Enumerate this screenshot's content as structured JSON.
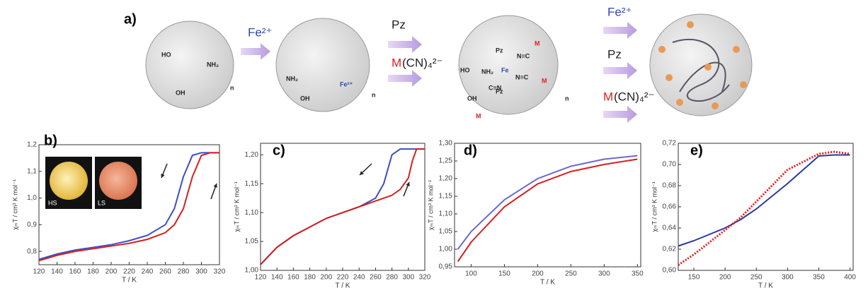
{
  "scheme": {
    "label": "a)",
    "step1": [
      "Fe²⁺"
    ],
    "step2": [
      "Pz",
      "M",
      "(CN)₄²⁻"
    ],
    "step3": [
      "Fe²⁺",
      "Pz",
      "M",
      "(CN)₄²⁻"
    ],
    "molecule1": [
      "HO",
      "NH₂",
      "OH",
      "n"
    ],
    "molecule2": [
      "NH₂",
      "OH",
      "Fe²⁺",
      "n"
    ],
    "molecule3": [
      "HO",
      "NH₂",
      "OH",
      "Fe",
      "Pz",
      "Pz",
      "N≡C",
      "N≡C",
      "C≡N",
      "M",
      "M",
      "M",
      "n"
    ]
  },
  "chart_data": [
    {
      "type": "line",
      "panel": "b)",
      "xlabel": "T / K",
      "ylabel": "χₘT / cm³ K mol⁻¹",
      "annotations": [
        "HS",
        "LS"
      ],
      "x": [
        120,
        140,
        160,
        180,
        200,
        220,
        240,
        260,
        270,
        280,
        290,
        300,
        310,
        320
      ],
      "xlim": [
        120,
        320
      ],
      "xticks": [
        120,
        140,
        160,
        180,
        200,
        220,
        240,
        260,
        280,
        300,
        320
      ],
      "ylim": [
        0.75,
        1.2
      ],
      "yticks": [
        {
          "value": 0.8,
          "label": "0,8"
        },
        {
          "value": 0.9,
          "label": "0,9"
        },
        {
          "value": 1.0,
          "label": "1,0"
        },
        {
          "value": 1.1,
          "label": "1,1"
        },
        {
          "value": 1.2,
          "label": "1,2"
        }
      ],
      "series": [
        {
          "color": "#3b4fc4",
          "style": "solid",
          "values": [
            0.77,
            0.79,
            0.805,
            0.815,
            0.825,
            0.84,
            0.86,
            0.9,
            0.96,
            1.08,
            1.16,
            1.17,
            1.17,
            1.17
          ]
        },
        {
          "color": "#d42020",
          "style": "solid",
          "values": [
            0.765,
            0.785,
            0.8,
            0.81,
            0.82,
            0.83,
            0.845,
            0.87,
            0.9,
            0.96,
            1.08,
            1.16,
            1.17,
            1.17
          ]
        }
      ]
    },
    {
      "type": "line",
      "panel": "c)",
      "xlabel": "T / K",
      "ylabel": "χₘT / cm³ K mol⁻¹",
      "x": [
        120,
        140,
        160,
        180,
        200,
        220,
        240,
        260,
        270,
        280,
        290,
        300,
        305,
        310,
        320
      ],
      "xlim": [
        120,
        320
      ],
      "xticks": [
        120,
        140,
        160,
        180,
        200,
        220,
        240,
        260,
        280,
        300,
        320
      ],
      "ylim": [
        1.0,
        1.22
      ],
      "yticks": [
        {
          "value": 1.0,
          "label": "1,00"
        },
        {
          "value": 1.05,
          "label": "1,05"
        },
        {
          "value": 1.1,
          "label": "1,10"
        },
        {
          "value": 1.15,
          "label": "1,15"
        },
        {
          "value": 1.2,
          "label": "1,20"
        }
      ],
      "series": [
        {
          "color": "#3b4fc4",
          "style": "solid",
          "values": [
            1.01,
            1.04,
            1.06,
            1.075,
            1.09,
            1.1,
            1.11,
            1.125,
            1.15,
            1.2,
            1.21,
            1.21,
            1.21,
            1.21,
            1.21
          ]
        },
        {
          "color": "#d42020",
          "style": "solid",
          "values": [
            1.01,
            1.04,
            1.06,
            1.075,
            1.09,
            1.1,
            1.11,
            1.12,
            1.125,
            1.13,
            1.14,
            1.16,
            1.19,
            1.21,
            1.21
          ]
        }
      ]
    },
    {
      "type": "line",
      "panel": "d)",
      "xlabel": "T / K",
      "ylabel": "χₘT / cm³ K mol⁻¹",
      "x": [
        80,
        100,
        150,
        200,
        250,
        300,
        350
      ],
      "xlim": [
        75,
        355
      ],
      "xticks": [
        100,
        150,
        200,
        250,
        300,
        350
      ],
      "ylim": [
        0.95,
        1.3
      ],
      "yticks": [
        {
          "value": 0.95,
          "label": "0,95"
        },
        {
          "value": 1.0,
          "label": "1,00"
        },
        {
          "value": 1.05,
          "label": "1,05"
        },
        {
          "value": 1.1,
          "label": "1,10"
        },
        {
          "value": 1.15,
          "label": "1,15"
        },
        {
          "value": 1.2,
          "label": "1,20"
        },
        {
          "value": 1.25,
          "label": "1,25"
        },
        {
          "value": 1.3,
          "label": "1,30"
        }
      ],
      "series": [
        {
          "color": "#6a6ac8",
          "style": "solid",
          "values": [
            1.0,
            1.05,
            1.14,
            1.2,
            1.235,
            1.255,
            1.265
          ]
        },
        {
          "color": "#d42020",
          "style": "solid",
          "values": [
            0.965,
            1.02,
            1.12,
            1.185,
            1.22,
            1.24,
            1.255
          ]
        }
      ]
    },
    {
      "type": "line",
      "panel": "e)",
      "xlabel": "T / K",
      "ylabel": "χₘT / cm³ K mol⁻¹",
      "x": [
        125,
        150,
        200,
        225,
        250,
        300,
        350,
        375,
        400
      ],
      "xlim": [
        125,
        405
      ],
      "xticks": [
        150,
        200,
        250,
        300,
        350,
        400
      ],
      "ylim": [
        0.6,
        0.72
      ],
      "yticks": [
        {
          "value": 0.6,
          "label": "0,60"
        },
        {
          "value": 0.62,
          "label": "0,62"
        },
        {
          "value": 0.64,
          "label": "0,64"
        },
        {
          "value": 0.66,
          "label": "0,66"
        },
        {
          "value": 0.68,
          "label": "0,68"
        },
        {
          "value": 0.7,
          "label": "0,70"
        },
        {
          "value": 0.72,
          "label": "0,72"
        }
      ],
      "series": [
        {
          "color": "#2a3a9a",
          "style": "solid",
          "values": [
            0.623,
            0.628,
            0.64,
            0.648,
            0.658,
            0.682,
            0.708,
            0.709,
            0.709
          ]
        },
        {
          "color": "#e02020",
          "style": "dotted",
          "values": [
            0.605,
            0.615,
            0.638,
            0.65,
            0.665,
            0.695,
            0.71,
            0.712,
            0.71
          ]
        }
      ]
    }
  ]
}
